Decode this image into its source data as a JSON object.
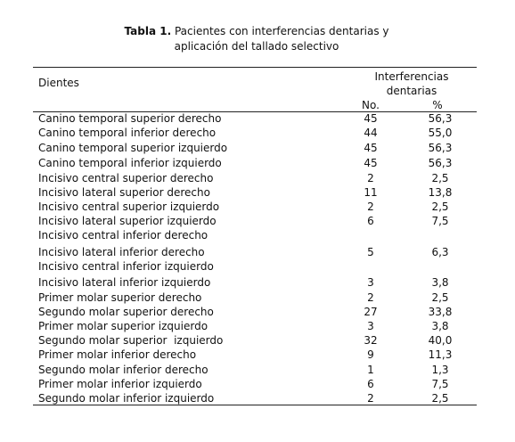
{
  "caption": {
    "label": "Tabla 1.",
    "lines": [
      "Pacientes con interferencias dentarias y",
      "aplicación del tallado selectivo"
    ]
  },
  "table": {
    "header": {
      "first": "Dientes",
      "group": [
        "Interferencias",
        "dentarias"
      ],
      "sub": [
        "No.",
        "%"
      ]
    },
    "rows": [
      [
        "Canino temporal superior derecho",
        "45",
        "56,3"
      ],
      [
        "Canino temporal inferior derecho",
        "44",
        "55,0"
      ],
      [
        "Canino temporal superior izquierdo",
        "45",
        "56,3"
      ],
      [
        "Canino temporal inferior izquierdo",
        "45",
        "56,3"
      ],
      [
        "Incisivo central superior derecho",
        "2",
        "2,5"
      ],
      [
        "Incisivo lateral superior derecho",
        "11",
        "13,8"
      ],
      [
        "Incisivo central superior izquierdo",
        "2",
        "2,5"
      ],
      [
        "Incisivo lateral superior izquierdo",
        "6",
        "7,5"
      ],
      [
        "Incisivo central inferior derecho",
        null,
        null
      ],
      [
        "Incisivo lateral inferior derecho",
        "5",
        "6,3"
      ],
      [
        "Incisivo central inferior izquierdo",
        null,
        null
      ],
      [
        "Incisivo lateral inferior izquierdo",
        "3",
        "3,8"
      ],
      [
        "Primer molar superior derecho",
        "2",
        "2,5"
      ],
      [
        "Segundo molar superior derecho",
        "27",
        "33,8"
      ],
      [
        "Primer molar superior izquierdo",
        "3",
        "3,8"
      ],
      [
        "Segundo molar superior  izquierdo",
        "32",
        "40,0"
      ],
      [
        "Primer molar inferior derecho",
        "9",
        "11,3"
      ],
      [
        "Segundo molar inferior derecho",
        "1",
        "1,3"
      ],
      [
        "Primer molar inferior izquierdo",
        "6",
        "7,5"
      ],
      [
        "Segundo molar inferior izquierdo",
        "2",
        "2,5"
      ]
    ]
  }
}
